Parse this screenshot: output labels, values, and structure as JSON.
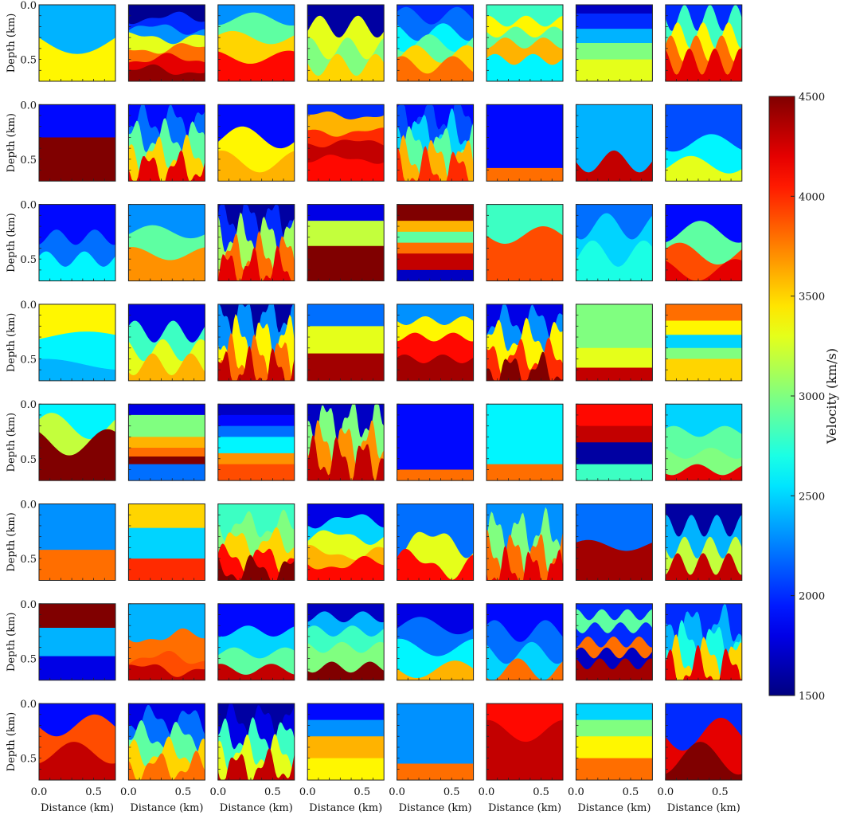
{
  "chart_data": {
    "type": "heatmap",
    "grid": {
      "rows": 8,
      "cols": 8
    },
    "xlabel": "Distance (km)",
    "ylabel": "Depth (km)",
    "x_ticks": [
      "0.0",
      "0.5"
    ],
    "y_ticks": [
      "0.0",
      "0.5"
    ],
    "xlim": [
      0,
      0.7
    ],
    "ylim": [
      0.7,
      0
    ],
    "colorbar": {
      "label": "Velocity (km/s)",
      "min": 1500,
      "max": 4500,
      "ticks": [
        "1500",
        "2000",
        "2500",
        "3000",
        "3500",
        "4000",
        "4500"
      ],
      "colormap": "jet"
    },
    "panels": [
      {
        "style": "smooth",
        "v": [
          2400,
          3400
        ],
        "depths": [
          0.3
        ],
        "amp": 0.15,
        "freq": 0.5
      },
      {
        "style": "complex",
        "v": [
          1550,
          2000,
          2300,
          3300,
          3800,
          4200,
          4450
        ],
        "depths": [
          0.12,
          0.22,
          0.3,
          0.4,
          0.5,
          0.6
        ],
        "amp": 0.04,
        "freq": 1
      },
      {
        "style": "smooth",
        "v": [
          2300,
          2900,
          3500,
          4100
        ],
        "depths": [
          0.13,
          0.3,
          0.48
        ],
        "amp": 0.06,
        "freq": 1
      },
      {
        "style": "smooth",
        "v": [
          1600,
          3300,
          3000,
          3500
        ],
        "depths": [
          0.2,
          0.4,
          0.55
        ],
        "amp": 0.1,
        "freq": 2
      },
      {
        "style": "smooth",
        "v": [
          2000,
          2200,
          2600,
          2900,
          3500,
          3800
        ],
        "depths": [
          0.1,
          0.25,
          0.35,
          0.45,
          0.55
        ],
        "amp": 0.08,
        "freq": 1.5
      },
      {
        "style": "smooth",
        "v": [
          2800,
          3400,
          2900,
          3600,
          2600
        ],
        "depths": [
          0.15,
          0.25,
          0.35,
          0.5
        ],
        "amp": 0.05,
        "freq": 2
      },
      {
        "style": "flat",
        "v": [
          1700,
          2000,
          2400,
          3000,
          3300
        ],
        "depths": [
          0.08,
          0.22,
          0.35,
          0.5
        ]
      },
      {
        "style": "smooth",
        "v": [
          2000,
          2800,
          3400,
          3800,
          4200
        ],
        "depths": [
          0.12,
          0.28,
          0.4,
          0.52
        ],
        "amp": 0.12,
        "freq": 3
      },
      {
        "style": "flat",
        "v": [
          1900,
          4500
        ],
        "depths": [
          0.3
        ],
        "step": true
      },
      {
        "style": "complex",
        "v": [
          1900,
          2200,
          2900,
          3500,
          4200
        ],
        "depths": [
          0.15,
          0.3,
          0.45,
          0.58
        ],
        "amp": 0.12,
        "freq": 2.5
      },
      {
        "style": "smooth",
        "v": [
          1900,
          3400,
          3600
        ],
        "depths": [
          0.3,
          0.52
        ],
        "amp": 0.1,
        "freq": 1
      },
      {
        "style": "complex",
        "v": [
          2000,
          3600,
          4000,
          4300,
          4100
        ],
        "depths": [
          0.1,
          0.25,
          0.35,
          0.5
        ],
        "amp": 0.03,
        "freq": 1
      },
      {
        "style": "complex",
        "v": [
          1900,
          2100,
          2500,
          2900,
          3600,
          4000
        ],
        "depths": [
          0.1,
          0.25,
          0.38,
          0.5,
          0.6
        ],
        "amp": 0.15,
        "freq": 2.5
      },
      {
        "style": "flat",
        "v": [
          1900,
          3800
        ],
        "depths": [
          0.58
        ]
      },
      {
        "style": "smooth",
        "v": [
          2400,
          4300
        ],
        "depths": [
          0.52
        ],
        "amp": 0.1,
        "freq": 1.5
      },
      {
        "style": "smooth",
        "v": [
          2100,
          2600,
          3300
        ],
        "depths": [
          0.35,
          0.55
        ],
        "amp": 0.08,
        "freq": 1
      },
      {
        "style": "smooth",
        "v": [
          1900,
          2200,
          2600
        ],
        "depths": [
          0.3,
          0.5
        ],
        "amp": 0.07,
        "freq": 2
      },
      {
        "style": "smooth",
        "v": [
          2300,
          2900,
          3700
        ],
        "depths": [
          0.25,
          0.45
        ],
        "amp": 0.06,
        "freq": 1
      },
      {
        "style": "complex",
        "v": [
          1600,
          2000,
          3100,
          3800,
          4200
        ],
        "depths": [
          0.12,
          0.28,
          0.45,
          0.58
        ],
        "amp": 0.14,
        "freq": 3
      },
      {
        "style": "flat",
        "v": [
          1800,
          3200,
          4500
        ],
        "depths": [
          0.15,
          0.38
        ]
      },
      {
        "style": "flat",
        "v": [
          4500,
          3600,
          2900,
          3800,
          4300,
          1700
        ],
        "depths": [
          0.15,
          0.25,
          0.35,
          0.45,
          0.6
        ]
      },
      {
        "style": "smooth",
        "v": [
          2800,
          3900
        ],
        "depths": [
          0.28
        ],
        "amp": 0.08,
        "freq": 1
      },
      {
        "style": "smooth",
        "v": [
          2200,
          2500,
          2700
        ],
        "depths": [
          0.2,
          0.45
        ],
        "amp": 0.12,
        "freq": 1.5
      },
      {
        "style": "smooth",
        "v": [
          1900,
          2900,
          3900,
          4200
        ],
        "depths": [
          0.25,
          0.45,
          0.6
        ],
        "amp": 0.1,
        "freq": 1
      },
      {
        "style": "smooth",
        "v": [
          3400,
          2600,
          2400
        ],
        "depths": [
          0.3,
          0.55
        ],
        "amp": 0.05,
        "freq": 0.5
      },
      {
        "style": "smooth",
        "v": [
          1800,
          2800,
          3300,
          3600
        ],
        "depths": [
          0.25,
          0.42,
          0.55
        ],
        "amp": 0.1,
        "freq": 2
      },
      {
        "style": "complex",
        "v": [
          1600,
          2300,
          3400,
          3800,
          4300
        ],
        "depths": [
          0.1,
          0.3,
          0.48,
          0.6
        ],
        "amp": 0.15,
        "freq": 3
      },
      {
        "style": "flat",
        "v": [
          2200,
          3300,
          4400
        ],
        "depths": [
          0.2,
          0.45
        ]
      },
      {
        "style": "smooth",
        "v": [
          2300,
          3400,
          4100,
          4400
        ],
        "depths": [
          0.15,
          0.3,
          0.5
        ],
        "amp": 0.04,
        "freq": 2
      },
      {
        "style": "complex",
        "v": [
          1800,
          2300,
          3400,
          4000,
          4500
        ],
        "depths": [
          0.15,
          0.3,
          0.48,
          0.6
        ],
        "amp": 0.12,
        "freq": 2.5
      },
      {
        "style": "flat",
        "v": [
          3000,
          3300,
          4300
        ],
        "depths": [
          0.4,
          0.58
        ]
      },
      {
        "style": "flat",
        "v": [
          3800,
          3400,
          2500,
          3000,
          3500
        ],
        "depths": [
          0.15,
          0.28,
          0.4,
          0.5
        ]
      },
      {
        "style": "smooth",
        "v": [
          2600,
          3200,
          4500
        ],
        "depths": [
          0.2,
          0.35
        ],
        "amp": 0.12,
        "freq": 1
      },
      {
        "style": "flat",
        "v": [
          1800,
          3000,
          3600,
          3800,
          4500,
          2200
        ],
        "depths": [
          0.1,
          0.3,
          0.4,
          0.48,
          0.55
        ]
      },
      {
        "style": "flat",
        "v": [
          1700,
          1900,
          2200,
          2600,
          3700,
          3900
        ],
        "depths": [
          0.1,
          0.2,
          0.3,
          0.45,
          0.55
        ]
      },
      {
        "style": "complex",
        "v": [
          1700,
          3000,
          3700,
          4300
        ],
        "depths": [
          0.15,
          0.35,
          0.5
        ],
        "amp": 0.15,
        "freq": 3
      },
      {
        "style": "flat",
        "v": [
          1900,
          3800
        ],
        "depths": [
          0.6
        ],
        "step": true
      },
      {
        "style": "flat",
        "v": [
          2600,
          3800
        ],
        "depths": [
          0.55
        ]
      },
      {
        "style": "flat",
        "v": [
          4100,
          4300,
          1600,
          2800
        ],
        "depths": [
          0.2,
          0.35,
          0.55
        ]
      },
      {
        "style": "smooth",
        "v": [
          2500,
          2900,
          3000,
          4200
        ],
        "depths": [
          0.25,
          0.45,
          0.6
        ],
        "amp": 0.05,
        "freq": 1.5
      },
      {
        "style": "flat",
        "v": [
          2300,
          3800
        ],
        "depths": [
          0.42
        ],
        "step": true
      },
      {
        "style": "flat",
        "v": [
          3500,
          2500,
          4000
        ],
        "depths": [
          0.22,
          0.5
        ]
      },
      {
        "style": "complex",
        "v": [
          2800,
          3000,
          3500,
          4100,
          4500
        ],
        "depths": [
          0.2,
          0.35,
          0.5,
          0.6
        ],
        "amp": 0.1,
        "freq": 2
      },
      {
        "style": "complex",
        "v": [
          1800,
          2500,
          3300,
          3600,
          4100
        ],
        "depths": [
          0.15,
          0.3,
          0.45,
          0.55
        ],
        "amp": 0.05,
        "freq": 1
      },
      {
        "style": "complex",
        "v": [
          2200,
          3300,
          4100
        ],
        "depths": [
          0.35,
          0.55
        ],
        "amp": 0.1,
        "freq": 1
      },
      {
        "style": "complex",
        "v": [
          2300,
          3000,
          3800,
          4200
        ],
        "depths": [
          0.25,
          0.45,
          0.6
        ],
        "amp": 0.15,
        "freq": 3
      },
      {
        "style": "smooth",
        "v": [
          2200,
          4400
        ],
        "depths": [
          0.38
        ],
        "amp": 0.05,
        "freq": 1
      },
      {
        "style": "smooth",
        "v": [
          1600,
          2400,
          3200,
          4300
        ],
        "depths": [
          0.2,
          0.4,
          0.55
        ],
        "amp": 0.1,
        "freq": 3
      },
      {
        "style": "flat",
        "v": [
          4500,
          2400,
          1800
        ],
        "depths": [
          0.22,
          0.48
        ]
      },
      {
        "style": "complex",
        "v": [
          2400,
          3800,
          3900,
          4300
        ],
        "depths": [
          0.3,
          0.5,
          0.6
        ],
        "amp": 0.05,
        "freq": 1
      },
      {
        "style": "smooth",
        "v": [
          1900,
          2500,
          2900,
          4300
        ],
        "depths": [
          0.25,
          0.45,
          0.6
        ],
        "amp": 0.05,
        "freq": 1.5
      },
      {
        "style": "smooth",
        "v": [
          1700,
          2400,
          2800,
          3000,
          4500
        ],
        "depths": [
          0.12,
          0.25,
          0.4,
          0.58
        ],
        "amp": 0.05,
        "freq": 2
      },
      {
        "style": "smooth",
        "v": [
          1800,
          2200,
          2600,
          3600
        ],
        "depths": [
          0.2,
          0.4,
          0.6
        ],
        "amp": 0.08,
        "freq": 1
      },
      {
        "style": "smooth",
        "v": [
          1900,
          2200,
          2500,
          3800
        ],
        "depths": [
          0.25,
          0.45,
          0.6
        ],
        "amp": 0.1,
        "freq": 1.5
      },
      {
        "style": "smooth",
        "v": [
          2000,
          2900,
          2000,
          3800,
          1700,
          4400
        ],
        "depths": [
          0.1,
          0.22,
          0.35,
          0.45,
          0.55
        ],
        "amp": 0.05,
        "freq": 3
      },
      {
        "style": "complex",
        "v": [
          2000,
          2400,
          2700,
          3500,
          4200
        ],
        "depths": [
          0.2,
          0.35,
          0.5,
          0.6
        ],
        "amp": 0.15,
        "freq": 2.5
      },
      {
        "style": "smooth",
        "v": [
          1900,
          3900,
          4300
        ],
        "depths": [
          0.2,
          0.45
        ],
        "amp": 0.1,
        "freq": 1
      },
      {
        "style": "complex",
        "v": [
          1800,
          2200,
          2900,
          3500,
          3800
        ],
        "depths": [
          0.15,
          0.3,
          0.45,
          0.58
        ],
        "amp": 0.1,
        "freq": 2
      },
      {
        "style": "complex",
        "v": [
          1600,
          1800,
          2800,
          3300,
          4300
        ],
        "depths": [
          0.15,
          0.3,
          0.45,
          0.58
        ],
        "amp": 0.12,
        "freq": 2.5
      },
      {
        "style": "flat",
        "v": [
          1900,
          2300,
          3600,
          3400
        ],
        "depths": [
          0.15,
          0.3,
          0.5
        ]
      },
      {
        "style": "flat",
        "v": [
          2300,
          3800
        ],
        "depths": [
          0.55
        ],
        "step": true
      },
      {
        "style": "smooth",
        "v": [
          4100,
          4300
        ],
        "depths": [
          0.25
        ],
        "amp": 0.1,
        "freq": 1
      },
      {
        "style": "flat",
        "v": [
          2500,
          3000,
          3400,
          3800
        ],
        "depths": [
          0.15,
          0.3,
          0.5
        ]
      },
      {
        "style": "smooth",
        "v": [
          2000,
          4200,
          4500
        ],
        "depths": [
          0.28,
          0.5
        ],
        "amp": 0.15,
        "freq": 1
      }
    ]
  }
}
